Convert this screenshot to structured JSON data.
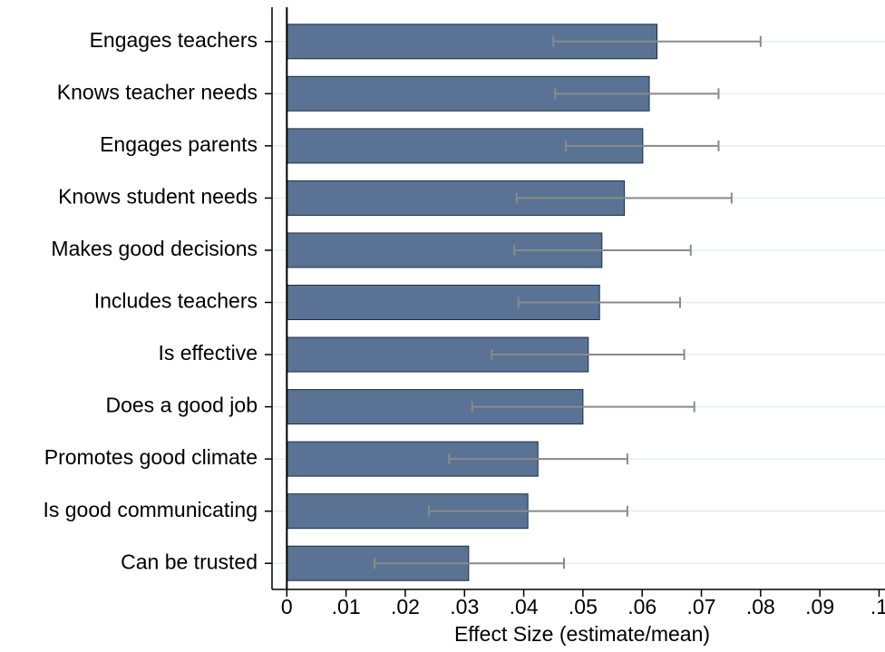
{
  "chart_data": {
    "type": "bar",
    "orientation": "horizontal",
    "x_label": "Effect Size (estimate/mean)",
    "categories": [
      "Engages teachers",
      "Knows teacher needs",
      "Engages parents",
      "Knows student needs",
      "Makes good decisions",
      "Includes teachers",
      "Is effective",
      "Does a good job",
      "Promotes good climate",
      "Is good communicating",
      "Can be trusted"
    ],
    "values": [
      0.0625,
      0.0612,
      0.0601,
      0.057,
      0.0532,
      0.0528,
      0.0509,
      0.05,
      0.0424,
      0.0407,
      0.0307
    ],
    "lower": [
      0.045,
      0.0453,
      0.0471,
      0.0388,
      0.0384,
      0.0391,
      0.0346,
      0.0313,
      0.0274,
      0.024,
      0.0148
    ],
    "upper": [
      0.08,
      0.0729,
      0.0729,
      0.0751,
      0.0682,
      0.0664,
      0.0671,
      0.0688,
      0.0575,
      0.0575,
      0.0468
    ],
    "color": "#5a7394",
    "error_color": "#8a8a8a",
    "xlim": [
      -0.0025,
      0.101
    ],
    "xticks": [
      0,
      {
        "value": 0.01,
        "label": ".01"
      },
      {
        "value": 0.02,
        "label": ".02"
      },
      {
        "value": 0.03,
        "label": ".03"
      },
      {
        "value": 0.04,
        "label": ".04"
      },
      {
        "value": 0.05,
        "label": ".05"
      },
      {
        "value": 0.06,
        "label": ".06"
      },
      {
        "value": 0.07,
        "label": ".07"
      },
      {
        "value": 0.08,
        "label": ".08"
      },
      {
        "value": 0.09,
        "label": ".09"
      },
      {
        "value": 0.1,
        "label": ".1"
      }
    ],
    "grid": true
  }
}
